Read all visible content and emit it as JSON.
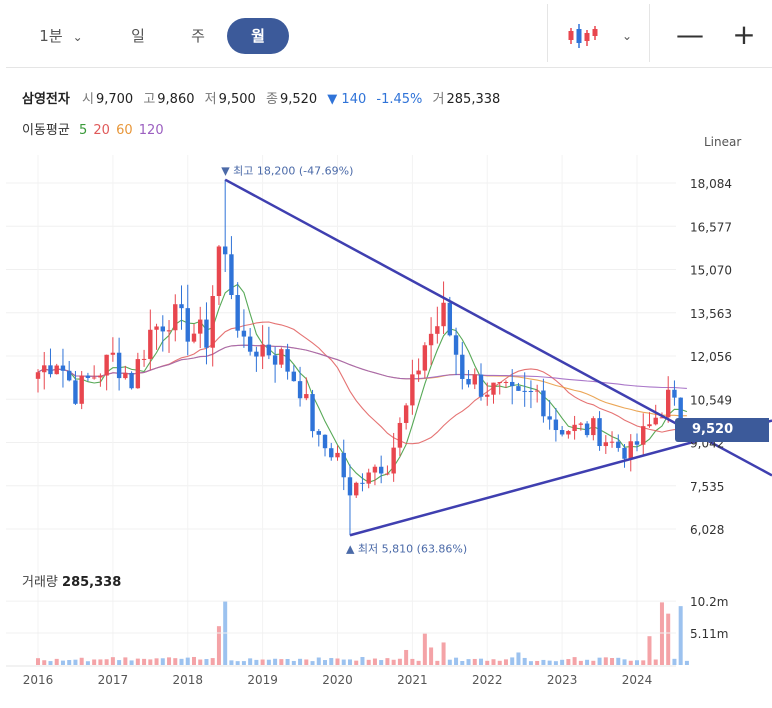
{
  "toolbar": {
    "minute_label": "1분",
    "day_label": "일",
    "week_label": "주",
    "month_label": "월"
  },
  "stock": {
    "name": "삼영전자",
    "open_label": "시",
    "open": "9,700",
    "high_label": "고",
    "high": "9,860",
    "low_label": "저",
    "low": "9,500",
    "close_label": "종",
    "close": "9,520",
    "change": "▼ 140",
    "change_pct": "-1.45%",
    "volume_label": "거",
    "volume": "285,338"
  },
  "moving_average": {
    "label": "이동평균",
    "periods": [
      "5",
      "20",
      "60",
      "120"
    ],
    "colors": [
      "#3a9a3a",
      "#e05a5a",
      "#e8973a",
      "#9b5fc0"
    ]
  },
  "scale": "Linear",
  "price_tag": "9,520",
  "volume_panel": {
    "label": "거래량",
    "value": "285,338"
  },
  "colors": {
    "up": "#e8464e",
    "down": "#2f73d8",
    "accent": "#3c5a9a",
    "trendline": "#3f3fb0"
  },
  "chart_data": {
    "type": "candlestick",
    "y_ticks": [
      "18,084",
      "16,577",
      "15,070",
      "13,563",
      "12,056",
      "10,549",
      "9,042",
      "7,535",
      "6,028"
    ],
    "y_tick_values": [
      18084,
      16577,
      15070,
      13563,
      12056,
      10549,
      9042,
      7535,
      6028
    ],
    "x_ticks": [
      "2016",
      "2017",
      "2018",
      "2019",
      "2020",
      "2021",
      "2022",
      "2023",
      "2024"
    ],
    "vol_ticks": [
      "10.2m",
      "5.11m"
    ],
    "vol_tick_values": [
      10.2,
      5.11
    ],
    "high_annotation": {
      "text": "최고 18,200 (-47.69%)",
      "date": "2018-07",
      "price": 18200
    },
    "low_annotation": {
      "text": "최저 5,810 (63.86%)",
      "date": "2020-03",
      "price": 5810
    },
    "trendlines": [
      {
        "from": [
          "2018-07",
          18200
        ],
        "to": [
          "2024-09",
          9500
        ]
      },
      {
        "from": [
          "2020-03",
          5810
        ],
        "to": [
          "2024-09",
          9000
        ]
      }
    ],
    "ohlc_anchors": [
      [
        "2016-01",
        11500
      ],
      [
        "2016-04",
        12000
      ],
      [
        "2016-07",
        10800
      ],
      [
        "2016-10",
        11400
      ],
      [
        "2017-01",
        12000
      ],
      [
        "2017-04",
        11200
      ],
      [
        "2017-07",
        12900
      ],
      [
        "2017-10",
        13500
      ],
      [
        "2018-01",
        13000
      ],
      [
        "2018-04",
        12700
      ],
      [
        "2018-06",
        15800
      ],
      [
        "2018-07",
        15600
      ],
      [
        "2018-10",
        12200
      ],
      [
        "2019-01",
        12400
      ],
      [
        "2019-04",
        12000
      ],
      [
        "2019-07",
        11000
      ],
      [
        "2019-10",
        9000
      ],
      [
        "2020-01",
        8600
      ],
      [
        "2020-03",
        7200
      ],
      [
        "2020-06",
        8200
      ],
      [
        "2020-09",
        8300
      ],
      [
        "2020-12",
        10200
      ],
      [
        "2021-03",
        12500
      ],
      [
        "2021-06",
        13500
      ],
      [
        "2021-09",
        11500
      ],
      [
        "2021-12",
        11000
      ],
      [
        "2022-03",
        10800
      ],
      [
        "2022-06",
        10500
      ],
      [
        "2022-09",
        10800
      ],
      [
        "2022-12",
        9600
      ],
      [
        "2023-03",
        9500
      ],
      [
        "2023-06",
        9500
      ],
      [
        "2023-09",
        9000
      ],
      [
        "2023-12",
        8700
      ],
      [
        "2024-03",
        9600
      ],
      [
        "2024-06",
        10600
      ],
      [
        "2024-09",
        9520
      ]
    ]
  }
}
